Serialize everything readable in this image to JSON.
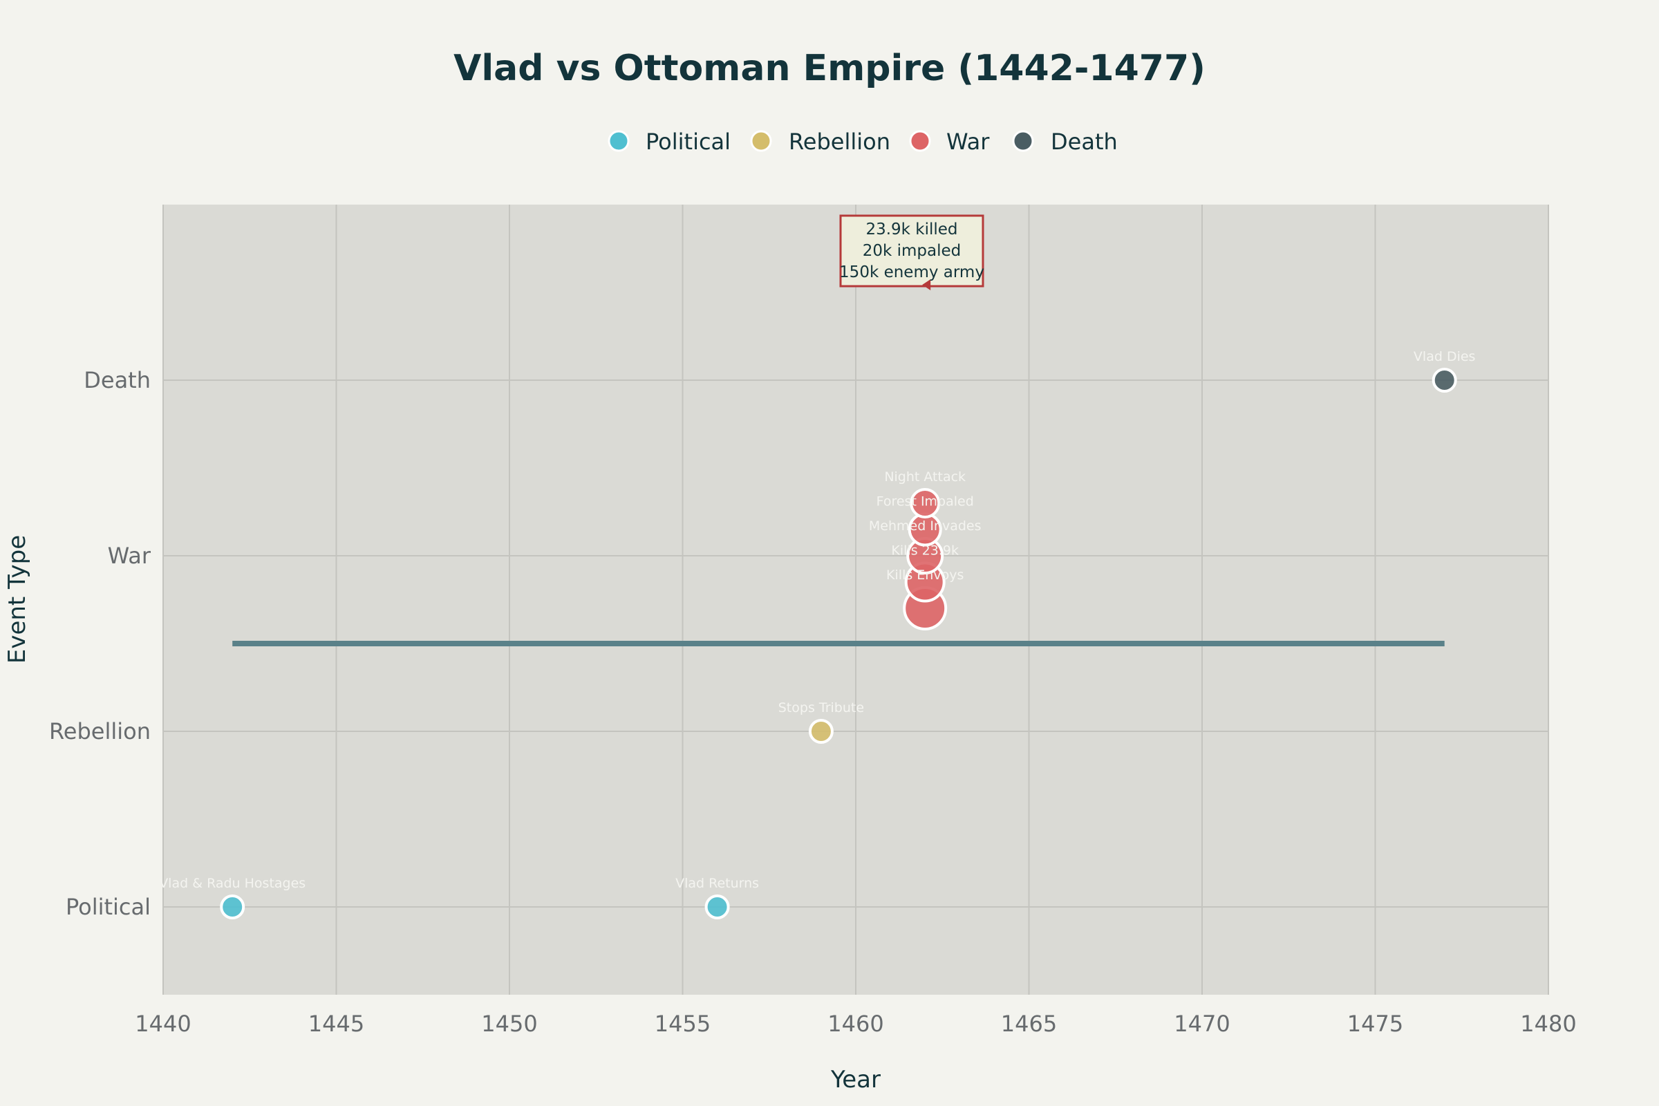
{
  "chart_data": {
    "type": "scatter",
    "title": "Vlad vs Ottoman Empire (1442-1477)",
    "xlabel": "Year",
    "ylabel": "Event Type",
    "xlim": [
      1440,
      1480
    ],
    "x_ticks": [
      "1440",
      "1445",
      "1450",
      "1455",
      "1460",
      "1465",
      "1470",
      "1475",
      "1480"
    ],
    "categories": [
      "Political",
      "Rebellion",
      "War",
      "Death"
    ],
    "grid": true,
    "legend_position": "top-center",
    "colors": {
      "Political": "#4fbfd0",
      "Rebellion": "#d4bd6b",
      "War": "#dd6466",
      "Death": "#4a5d63",
      "timeline": "#5a8189",
      "plot_bg": "#dadad5",
      "page_bg": "#f3f3ee",
      "annotation_border": "#b53a3a",
      "annotation_fill": "#eeeedc"
    },
    "series": [
      {
        "name": "Political",
        "points": [
          {
            "x": 1442,
            "y": "Political",
            "label": "Vlad & Radu Hostages"
          },
          {
            "x": 1456,
            "y": "Political",
            "label": "Vlad Returns"
          }
        ]
      },
      {
        "name": "Rebellion",
        "points": [
          {
            "x": 1459,
            "y": "Rebellion",
            "label": "Stops Tribute"
          }
        ]
      },
      {
        "name": "War",
        "points": [
          {
            "x": 1462,
            "y": "War",
            "label": "Kills Envoys"
          },
          {
            "x": 1462,
            "y": "War",
            "label": "Kills 23.9k"
          },
          {
            "x": 1462,
            "y": "War",
            "label": "Mehmed Invades"
          },
          {
            "x": 1462,
            "y": "War",
            "label": "Forest Impaled"
          },
          {
            "x": 1462,
            "y": "War",
            "label": "Night Attack"
          }
        ]
      },
      {
        "name": "Death",
        "points": [
          {
            "x": 1477,
            "y": "Death",
            "label": "Vlad Dies"
          }
        ]
      }
    ],
    "timeline": {
      "x_start": 1442,
      "x_end": 1477
    },
    "annotation": {
      "x": 1462,
      "lines": [
        "23.9k killed",
        "20k impaled",
        "150k enemy army"
      ]
    }
  }
}
